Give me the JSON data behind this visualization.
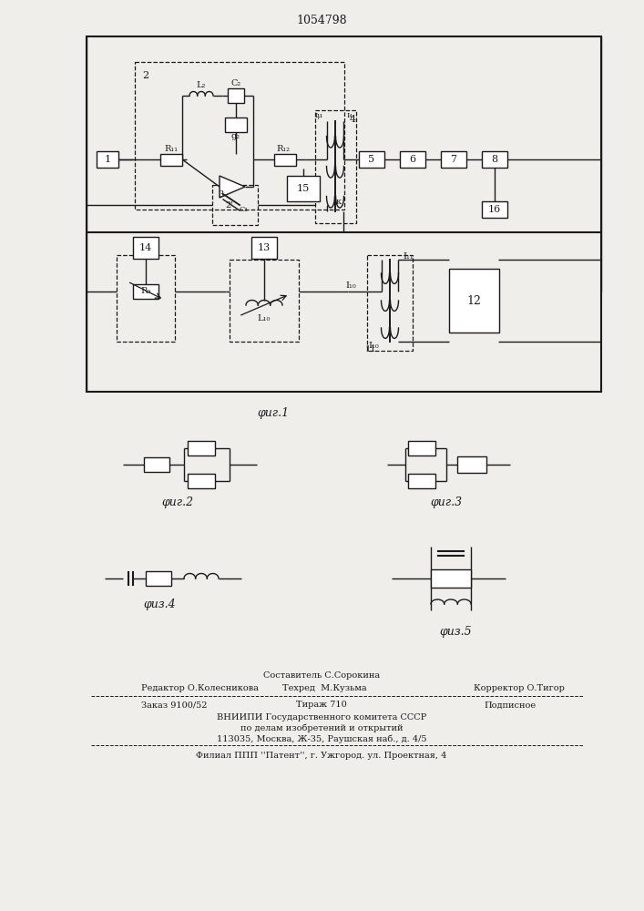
{
  "title": "1054798",
  "fig_label1": "φиг.1",
  "fig_label2": "φиг.2",
  "fig_label3": "φиг.3",
  "fig_label4": "φиз.4",
  "fig_label5": "φиз.5",
  "bg_color": "#f0eeea",
  "line_color": "#1a1a1a",
  "footer_sestavitel": "Составитель С.Сорокина",
  "footer_redaktor": "Редактор О.Колесникова",
  "footer_tekhred": "Техред  М.Кузьма",
  "footer_korrektor": "Корректор О.Тигор",
  "footer_zakaz": "Заказ 9100/52",
  "footer_tirazh": "Тираж 710",
  "footer_podpisnoe": "Подписное",
  "footer_vniip1": "ВНИИПИ Государственного комитета СССР",
  "footer_vniip2": "по делам изобретений и открытий",
  "footer_addr": "113035, Москва, Ж-35, Раушская наб., д. 4/5",
  "footer_filial": "Филиал ППП ''Патент'', г. Ужгород. ул. Проектная, 4"
}
